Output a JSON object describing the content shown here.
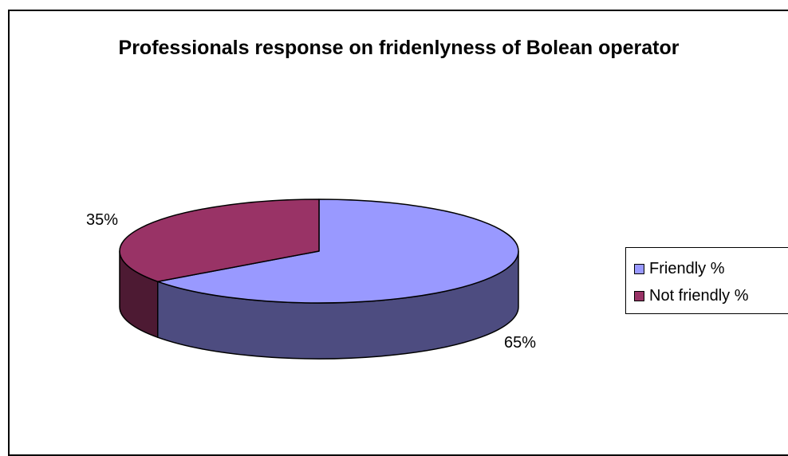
{
  "chart_data": {
    "type": "pie",
    "title": "Professionals response on fridenlyness of Bolean operator",
    "categories": [
      "Friendly %",
      "Not friendly %"
    ],
    "values": [
      65,
      35
    ],
    "labels": [
      "65%",
      "35%"
    ],
    "legend_position": "right",
    "three_d": true,
    "colors": {
      "top": [
        "#9999ff",
        "#993366"
      ],
      "side": [
        "#4d4c80",
        "#4d1a33"
      ]
    }
  }
}
